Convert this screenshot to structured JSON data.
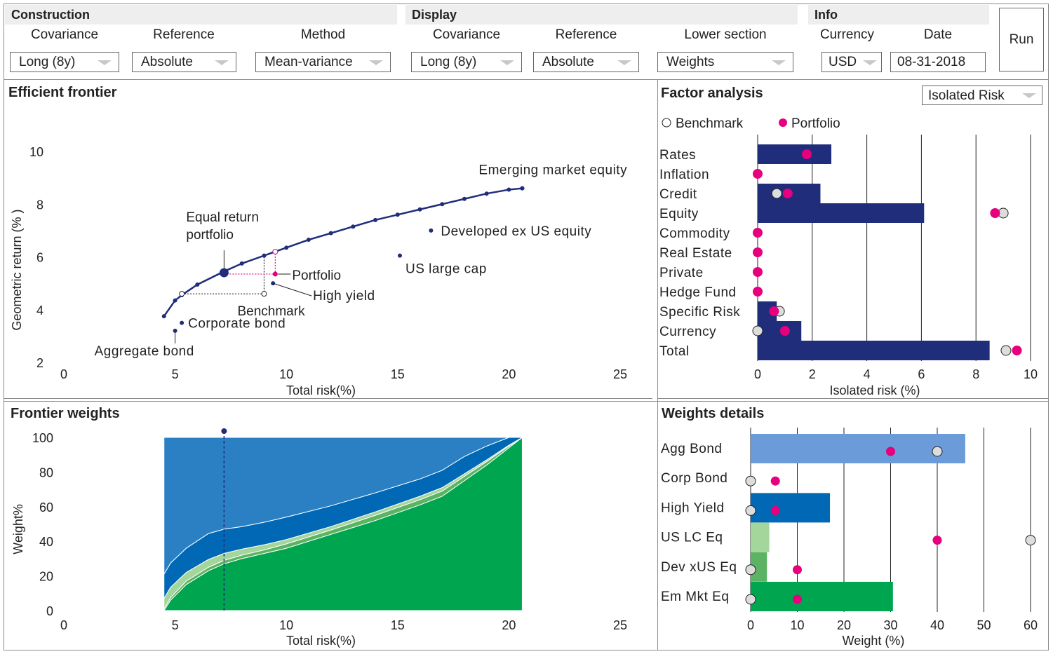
{
  "construction": {
    "title": "Construction",
    "covariance_label": "Covariance",
    "covariance_value": "Long (8y)",
    "reference_label": "Reference",
    "reference_value": "Absolute",
    "method_label": "Method",
    "method_value": "Mean-variance"
  },
  "display": {
    "title": "Display",
    "covariance_label": "Covariance",
    "covariance_value": "Long (8y)",
    "reference_label": "Reference",
    "reference_value": "Absolute",
    "lower_label": "Lower section",
    "lower_value": "Weights"
  },
  "info": {
    "title": "Info",
    "currency_label": "Currency",
    "currency_value": "USD",
    "date_label": "Date",
    "date_value": "08-31-2018"
  },
  "run_label": "Run",
  "factor_mode": "Isolated Risk",
  "colors": {
    "navy": "#1f2d7b",
    "magenta": "#e6007e",
    "agg": "#6b9bd8",
    "corp": "#2b80c4",
    "hy": "#0068b5",
    "us": "#a4d69c",
    "dev": "#5db364",
    "em": "#00a54f"
  },
  "chart_data": [
    {
      "type": "line",
      "title": "Efficient frontier",
      "xlabel": "Total risk(%)",
      "ylabel": "Geometric return (% )",
      "xlim": [
        0,
        25
      ],
      "ylim": [
        2,
        10
      ],
      "xticks": [
        0,
        5,
        10,
        15,
        20,
        25
      ],
      "yticks": [
        2,
        4,
        6,
        8,
        10
      ],
      "frontier": {
        "x": [
          4.5,
          5.0,
          5.3,
          6.0,
          7.2,
          8.0,
          9.0,
          10.0,
          11.0,
          12.0,
          13.0,
          14.0,
          15.0,
          16.0,
          17.0,
          18.0,
          19.0,
          20.0,
          20.6
        ],
        "y": [
          3.75,
          4.35,
          4.55,
          4.95,
          5.45,
          5.75,
          6.05,
          6.35,
          6.65,
          6.9,
          7.15,
          7.4,
          7.6,
          7.8,
          8.0,
          8.2,
          8.4,
          8.55,
          8.6
        ]
      },
      "assets": [
        {
          "name": "Aggregate bond",
          "x": 5.0,
          "y": 3.2
        },
        {
          "name": "Corporate bond",
          "x": 5.3,
          "y": 3.5
        },
        {
          "name": "High yield",
          "x": 9.4,
          "y": 5.0
        },
        {
          "name": "US large cap",
          "x": 15.1,
          "y": 6.05
        },
        {
          "name": "Developed ex US equity",
          "x": 16.5,
          "y": 7.0
        },
        {
          "name": "Emerging market equity",
          "x": 20.6,
          "y": 8.6
        }
      ],
      "equal_return": {
        "name": "Equal return portfolio",
        "x": 7.2,
        "y": 5.4
      },
      "portfolio": {
        "name": "Portfolio",
        "x": 9.5,
        "y": 5.35
      },
      "benchmark": {
        "name": "Benchmark",
        "x": 9.0,
        "y": 4.6
      },
      "min_risk_same_return": {
        "x": 5.3,
        "y": 4.6
      },
      "max_return_same_risk": {
        "x": 9.0,
        "y": 6.05
      },
      "same_risk_point": {
        "x": 9.5,
        "y": 6.2
      }
    },
    {
      "type": "bar",
      "title": "Factor analysis",
      "xlabel": "Isolated risk (%)",
      "xlim": [
        0,
        10
      ],
      "xticks": [
        0,
        2,
        4,
        6,
        8,
        10
      ],
      "categories": [
        "Rates",
        "Inflation",
        "Credit",
        "Equity",
        "Commodity",
        "Real Estate",
        "Private",
        "Hedge Fund",
        "Specific Risk",
        "Currency",
        "Total"
      ],
      "bars": [
        2.7,
        0,
        2.3,
        6.1,
        0,
        0,
        0,
        0,
        0.7,
        1.6,
        8.5
      ],
      "benchmark": [
        null,
        null,
        0.7,
        9.0,
        null,
        null,
        null,
        null,
        0.8,
        0.0,
        9.1
      ],
      "portfolio": [
        1.8,
        0.0,
        1.1,
        8.7,
        0.0,
        0.0,
        0.0,
        0.0,
        0.6,
        1.0,
        9.5
      ],
      "legend": [
        "Benchmark",
        "Portfolio"
      ]
    },
    {
      "type": "area",
      "title": "Frontier weights",
      "xlabel": "Total risk(%)",
      "ylabel": "Weight%",
      "xlim": [
        0,
        25
      ],
      "ylim": [
        0,
        100
      ],
      "xticks": [
        0,
        5,
        10,
        15,
        20,
        25
      ],
      "yticks": [
        0,
        20,
        40,
        60,
        80,
        100
      ],
      "x": [
        4.5,
        4.8,
        5.5,
        6.5,
        7.2,
        8.0,
        9.0,
        10.0,
        12.0,
        14.0,
        16.0,
        17.0,
        18.0,
        19.0,
        20.0,
        20.6
      ],
      "series": [
        {
          "key": "em",
          "values": [
            0,
            6,
            15,
            23,
            27,
            30,
            33,
            36,
            44,
            52,
            61,
            66,
            75,
            84,
            94,
            100
          ]
        },
        {
          "key": "dev",
          "values": [
            1,
            1.5,
            2,
            2,
            2,
            2,
            2,
            2.5,
            2.5,
            3,
            3,
            3,
            2.5,
            2,
            1,
            0
          ]
        },
        {
          "key": "us",
          "values": [
            6,
            6,
            5,
            4.5,
            4,
            3.5,
            3,
            2.5,
            2,
            2,
            2,
            2,
            1.5,
            1,
            0.5,
            0
          ]
        },
        {
          "key": "hy",
          "values": [
            14,
            14,
            14,
            15,
            14,
            13,
            13,
            13,
            12,
            11,
            10,
            10,
            10,
            8,
            4.5,
            0
          ]
        },
        {
          "key": "corp",
          "values": [
            79,
            72.5,
            64,
            55.5,
            53,
            51.5,
            49,
            46,
            39.5,
            32,
            24,
            19,
            11,
            5,
            0,
            0
          ]
        }
      ],
      "marker_x": 7.2
    },
    {
      "type": "bar",
      "title": "Weights details",
      "xlabel": "Weight (%)",
      "xlim": [
        0,
        60
      ],
      "xticks": [
        0,
        10,
        20,
        30,
        40,
        50,
        60
      ],
      "categories": [
        "Agg Bond",
        "Corp Bond",
        "High Yield",
        "US LC Eq",
        "Dev xUS Eq",
        "Em Mkt Eq"
      ],
      "bars": [
        46,
        0,
        17,
        4,
        3.5,
        30.5
      ],
      "bar_colors": [
        "agg",
        "corp",
        "hy",
        "us",
        "dev",
        "em"
      ],
      "benchmark": [
        40,
        0,
        0,
        60,
        0,
        0
      ],
      "portfolio": [
        30,
        5.3,
        5.3,
        40,
        10,
        10
      ]
    }
  ]
}
